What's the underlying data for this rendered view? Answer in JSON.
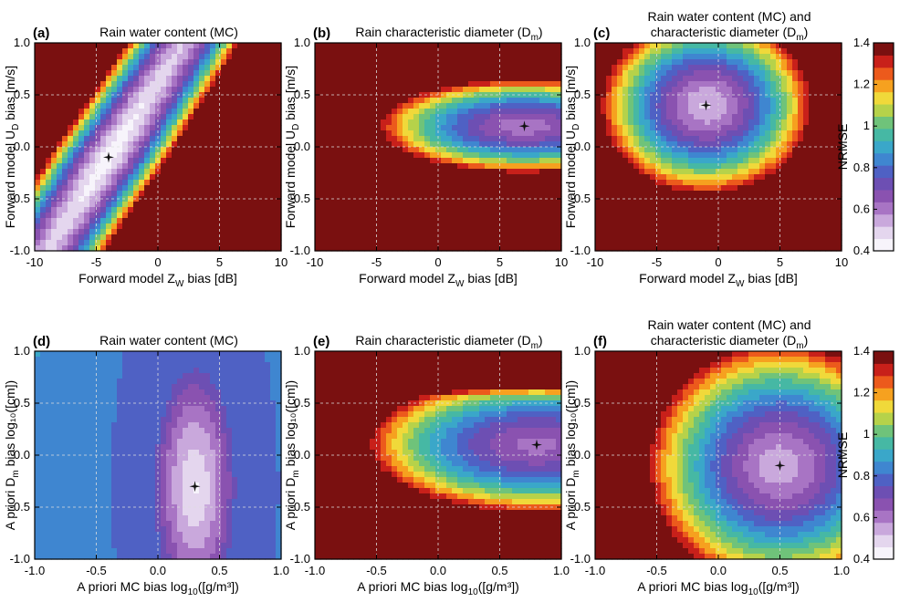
{
  "figure": {
    "colormap": [
      "#f7f4fb",
      "#e4d6ee",
      "#c9a8dc",
      "#a874c4",
      "#8a52b0",
      "#6d4fb3",
      "#4f61c4",
      "#3f86d0",
      "#3aa7c9",
      "#46b8a4",
      "#6fc37a",
      "#b6d24a",
      "#f0d93a",
      "#f6a11f",
      "#ec5a1c",
      "#c8201a",
      "#7a1010"
    ],
    "colorbars": [
      {
        "id": "top",
        "label": "NRMSE",
        "ticks": [
          "1.4",
          "1.2",
          "1",
          "0.8",
          "0.6",
          "0.4"
        ]
      },
      {
        "id": "bottom",
        "label": "NRMSE",
        "ticks": [
          "1.4",
          "1.2",
          "1",
          "0.8",
          "0.6",
          "0.4"
        ]
      }
    ],
    "marker_color": "#111111"
  },
  "chart_data": [
    {
      "panel": "(a)",
      "type": "heatmap",
      "title_lines": [
        "Rain water content (MC)"
      ],
      "xlabel": "Forward model Z",
      "xlabel_sub": "W",
      "xlabel_tail": " bias [dB]",
      "ylabel": "Forward model U",
      "ylabel_sub": "D",
      "ylabel_tail": " bias [m/s]",
      "xlim": [
        -10,
        10
      ],
      "ylim": [
        -1,
        1
      ],
      "xticks": [
        "-10",
        "-5",
        "0",
        "5",
        "10"
      ],
      "yticks": [
        "1.0",
        "0.5",
        "0.0",
        "-0.5",
        "-1.0"
      ],
      "clim": [
        0.4,
        1.4
      ],
      "minimum": [
        -4,
        -0.1
      ],
      "field": {
        "kind": "band",
        "center": [
          -4,
          -0.1
        ],
        "slope": 5.5,
        "width": 4.2,
        "along": 1.2,
        "min": 0.41
      }
    },
    {
      "panel": "(b)",
      "type": "heatmap",
      "title_lines": [
        "Rain characteristic diameter (D"
      ],
      "title_sub": "m",
      "title_tail": ")",
      "xlabel": "Forward model Z",
      "xlabel_sub": "W",
      "xlabel_tail": " bias [dB]",
      "ylabel": "Forward model U",
      "ylabel_sub": "D",
      "ylabel_tail": " bias [m/s]",
      "xlim": [
        -10,
        10
      ],
      "ylim": [
        -1,
        1
      ],
      "xticks": [
        "-10",
        "-5",
        "0",
        "5",
        "10"
      ],
      "yticks": [
        "1.0",
        "0.5",
        "0.0",
        "-0.5",
        "-1.0"
      ],
      "clim": [
        0.4,
        1.4
      ],
      "minimum": [
        7,
        0.2
      ],
      "field": {
        "kind": "ellipse",
        "center": [
          7,
          0.2
        ],
        "sx": 11,
        "sy": 0.42,
        "rot": 0.02,
        "min": 0.58,
        "power": 1.15
      }
    },
    {
      "panel": "(c)",
      "type": "heatmap",
      "title_lines": [
        "Rain water content (MC) and",
        "characteristic diameter (D"
      ],
      "title_sub": "m",
      "title_tail": ")",
      "xlabel": "Forward model Z",
      "xlabel_sub": "W",
      "xlabel_tail": " bias [dB]",
      "ylabel": "Forward model U",
      "ylabel_sub": "D",
      "ylabel_tail": " bias [m/s]",
      "xlim": [
        -10,
        10
      ],
      "ylim": [
        -1,
        1
      ],
      "xticks": [
        "-10",
        "-5",
        "0",
        "5",
        "10"
      ],
      "yticks": [
        "1.0",
        "0.5",
        "0.0",
        "-0.5",
        "-1.0"
      ],
      "clim": [
        0.4,
        1.4
      ],
      "minimum": [
        -1,
        0.4
      ],
      "field": {
        "kind": "ellipse",
        "center": [
          -1,
          0.4
        ],
        "sx": 7.5,
        "sy": 0.75,
        "rot": 0.04,
        "min": 0.5,
        "power": 1.0
      }
    },
    {
      "panel": "(d)",
      "type": "heatmap",
      "title_lines": [
        "Rain water content (MC)"
      ],
      "xlabel": "A priori MC bias log",
      "xlabel_sub": "10",
      "xlabel_tail": "([g/m³])",
      "ylabel": "A priori D",
      "ylabel_sub": "m",
      "ylabel_tail": " bias log₁₀([cm])",
      "xlim": [
        -1,
        1
      ],
      "ylim": [
        -1,
        1
      ],
      "xticks": [
        "-1.0",
        "-0.5",
        "0.0",
        "0.5",
        "1.0"
      ],
      "yticks": [
        "1.0",
        "0.5",
        "0.0",
        "-0.5",
        "-1.0"
      ],
      "clim": [
        0.4,
        1.4
      ],
      "minimum": [
        0.3,
        -0.3
      ],
      "field": {
        "kind": "ellipse",
        "center": [
          0.3,
          -0.3
        ],
        "sx": 0.55,
        "sy": 1.9,
        "rot": 0.0,
        "min": 0.45,
        "power": 1.0,
        "cap": 0.75
      }
    },
    {
      "panel": "(e)",
      "type": "heatmap",
      "title_lines": [
        "Rain characteristic diameter (D"
      ],
      "title_sub": "m",
      "title_tail": ")",
      "xlabel": "A priori MC bias log",
      "xlabel_sub": "10",
      "xlabel_tail": "([g/m³])",
      "ylabel": "A priori D",
      "ylabel_sub": "m",
      "ylabel_tail": " bias log₁₀([cm])",
      "xlim": [
        -1,
        1
      ],
      "ylim": [
        -1,
        1
      ],
      "xticks": [
        "-1.0",
        "-0.5",
        "0.0",
        "0.5",
        "1.0"
      ],
      "yticks": [
        "1.0",
        "0.5",
        "0.0",
        "-0.5",
        "-1.0"
      ],
      "clim": [
        0.4,
        1.4
      ],
      "minimum": [
        0.8,
        0.1
      ],
      "field": {
        "kind": "ellipse",
        "center": [
          0.8,
          0.1
        ],
        "sx": 1.3,
        "sy": 0.62,
        "rot": 0.0,
        "min": 0.6,
        "power": 1.25,
        "topboost": true
      }
    },
    {
      "panel": "(f)",
      "type": "heatmap",
      "title_lines": [
        "Rain water content (MC) and",
        "characteristic diameter (D"
      ],
      "title_sub": "m",
      "title_tail": ")",
      "xlabel": "A priori MC bias log",
      "xlabel_sub": "10",
      "xlabel_tail": "([g/m³])",
      "ylabel": "A priori D",
      "ylabel_sub": "m",
      "ylabel_tail": " bias log₁₀([cm])",
      "xlim": [
        -1,
        1
      ],
      "ylim": [
        -1,
        1
      ],
      "xticks": [
        "-1.0",
        "-0.5",
        "0.0",
        "0.5",
        "1.0"
      ],
      "yticks": [
        "1.0",
        "0.5",
        "0.0",
        "-0.5",
        "-1.0"
      ],
      "clim": [
        0.4,
        1.4
      ],
      "minimum": [
        0.5,
        -0.1
      ],
      "field": {
        "kind": "ellipse",
        "center": [
          0.5,
          -0.1
        ],
        "sx": 0.95,
        "sy": 1.05,
        "rot": -0.25,
        "min": 0.52,
        "power": 1.0
      }
    }
  ]
}
